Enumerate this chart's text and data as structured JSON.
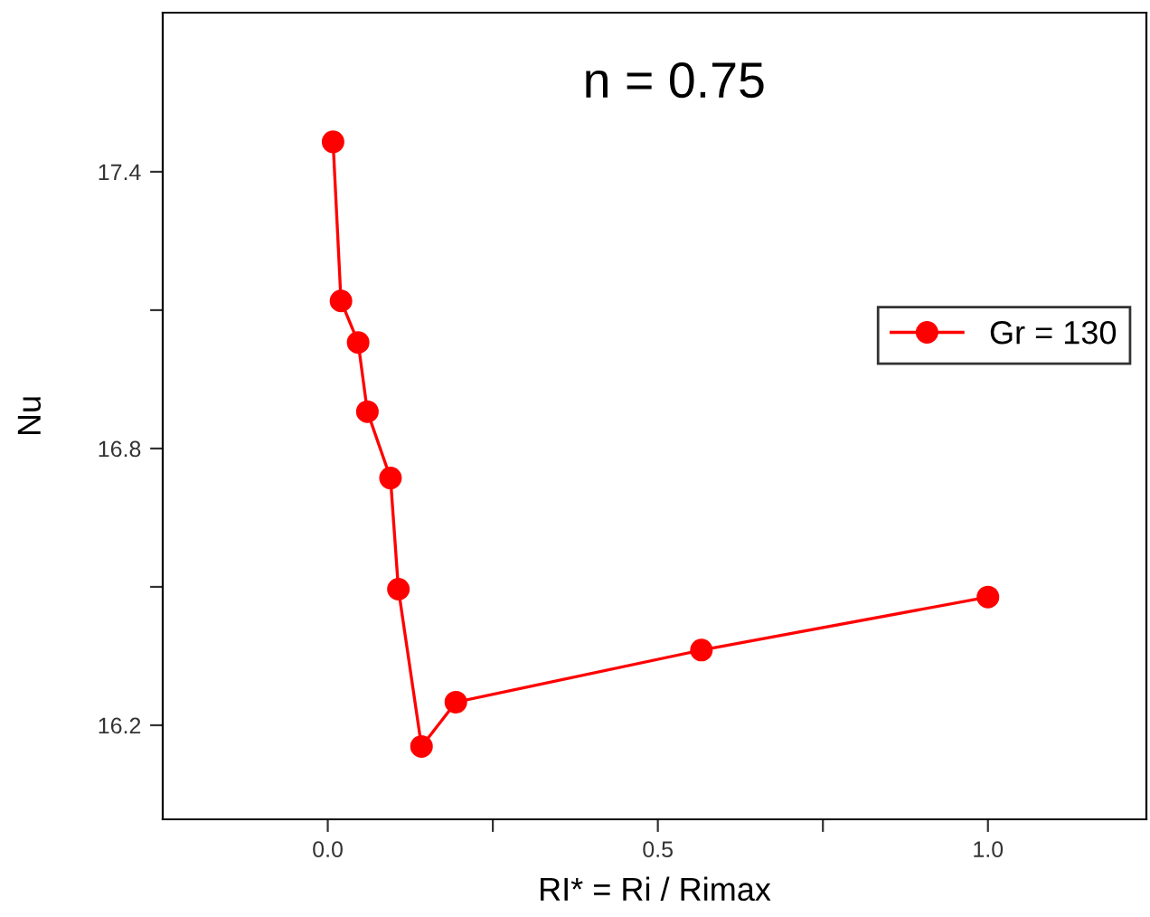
{
  "chart_data": {
    "type": "line",
    "title": "n = 0.75",
    "xlabel": "RI* = Ri / Rimax",
    "ylabel": "Nu",
    "series": [
      {
        "name": "Gr = 130",
        "color": "#ff0000",
        "x": [
          0.008,
          0.02,
          0.046,
          0.06,
          0.095,
          0.107,
          0.142,
          0.194,
          0.566,
          1.0
        ],
        "values": [
          17.465,
          17.12,
          17.03,
          16.88,
          16.736,
          16.495,
          16.154,
          16.25,
          16.363,
          16.478
        ]
      }
    ],
    "xlim": [
      -0.25,
      1.24
    ],
    "ylim": [
      15.996,
      17.745
    ],
    "xticks": [
      {
        "value": 0.0,
        "label": "0.0"
      },
      {
        "value": 0.25,
        "label": null
      },
      {
        "value": 0.5,
        "label": "0.5"
      },
      {
        "value": 0.75,
        "label": null
      },
      {
        "value": 1.0,
        "label": "1.0"
      }
    ],
    "yticks": [
      16.2,
      {
        "value": 16.5,
        "label": null
      },
      16.8,
      {
        "value": 17.1,
        "label": null
      },
      17.4
    ],
    "marker": "circle",
    "line_style": "solid",
    "grid": false,
    "legend": "right"
  }
}
